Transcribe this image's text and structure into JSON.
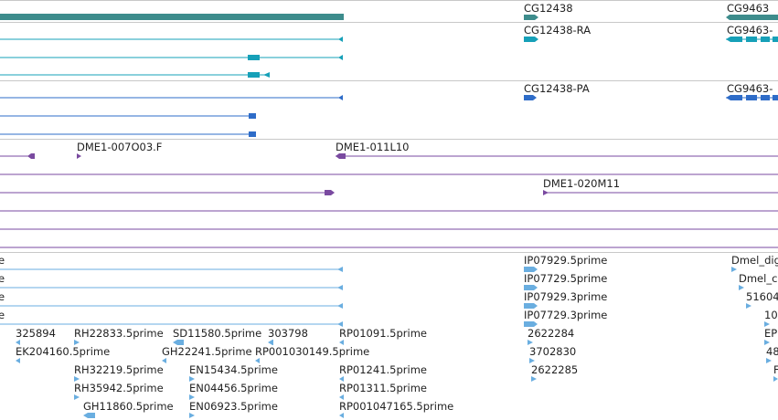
{
  "colors": {
    "background": "#ffffff",
    "divider": "#c8c8c8",
    "gene_teal": "#3d8c8c",
    "transcript_teal": "#16a0b8",
    "protein_blue": "#2e6cc8",
    "bac_purple": "#7a4aa0",
    "est_light_blue": "#6aaee0",
    "label_text": "#222222"
  },
  "tracks": {
    "genes": {
      "label_a": "CG12438",
      "label_b": "CG9463"
    },
    "transcripts": {
      "label_a": "CG12438-RA",
      "label_b": "CG9463-"
    },
    "proteins": {
      "label_a": "CG12438-PA",
      "label_b": "CG9463-"
    },
    "bac_clones": {
      "labels": [
        "DME1-007O03.F",
        "DME1-011L10",
        "DME1-020M11"
      ]
    },
    "est_alignments": {
      "labels": [
        "e",
        "e",
        "e",
        "e",
        "325894",
        "RH22833.5prime",
        "SD11580.5prime",
        "303798",
        "RP01091.5prime",
        "EK204160.5prime",
        "GH22241.5prime",
        "RP001030149.5prime",
        "RH32219.5prime",
        "EN15434.5prime",
        "RP01241.5prime",
        "RH35942.5prime",
        "EN04456.5prime",
        "RP01311.5prime",
        "GH11860.5prime",
        "EN06923.5prime",
        "RP001047165.5prime",
        "IP07929.5prime",
        "IP07729.5prime",
        "IP07929.3prime",
        "IP07729.3prime",
        "2622284",
        "3702830",
        "2622285",
        "Dmel_dig",
        "Dmel_c",
        "51604",
        "10",
        "EP",
        "48",
        "F"
      ]
    }
  }
}
